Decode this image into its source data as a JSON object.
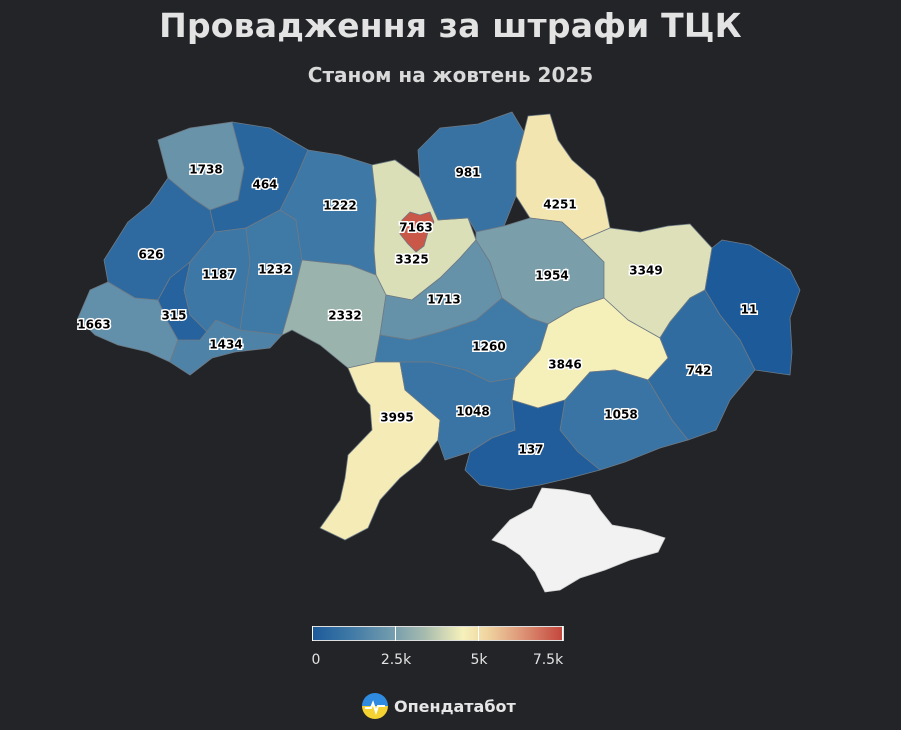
{
  "title": "Провадження за штрафи ТЦК",
  "subtitle": "Станом на жовтень 2025",
  "colors": {
    "background": "#222428",
    "scale_low": "#1d5a9a",
    "scale_mid": "#f6f1bc",
    "scale_high": "#c3453c",
    "no_data": "#f2f2f2"
  },
  "legend": {
    "ticks": [
      "0",
      "2.5k",
      "5k",
      "7.5k"
    ]
  },
  "brand": {
    "name": "Опендатабот",
    "icon": "opendatabot-logo-icon"
  },
  "chart_data": {
    "type": "choropleth",
    "title": "Провадження за штрафи ТЦК",
    "subtitle": "Станом на жовтень 2025",
    "scale": [
      0,
      7500
    ],
    "values": [
      {
        "label": "1738",
        "value": 1738
      },
      {
        "label": "464",
        "value": 464
      },
      {
        "label": "626",
        "value": 626
      },
      {
        "label": "1187",
        "value": 1187
      },
      {
        "label": "1232",
        "value": 1232
      },
      {
        "label": "1222",
        "value": 1222
      },
      {
        "label": "7163",
        "value": 7163
      },
      {
        "label": "3325",
        "value": 3325
      },
      {
        "label": "981",
        "value": 981
      },
      {
        "label": "4251",
        "value": 4251
      },
      {
        "label": "1663",
        "value": 1663
      },
      {
        "label": "315",
        "value": 315
      },
      {
        "label": "1434",
        "value": 1434
      },
      {
        "label": "2332",
        "value": 2332
      },
      {
        "label": "1713",
        "value": 1713
      },
      {
        "label": "1954",
        "value": 1954
      },
      {
        "label": "3349",
        "value": 3349
      },
      {
        "label": "11",
        "value": 11
      },
      {
        "label": "1260",
        "value": 1260
      },
      {
        "label": "3846",
        "value": 3846
      },
      {
        "label": "742",
        "value": 742
      },
      {
        "label": "3995",
        "value": 3995
      },
      {
        "label": "1048",
        "value": 1048
      },
      {
        "label": "1058",
        "value": 1058
      },
      {
        "label": "137",
        "value": 137
      }
    ]
  }
}
